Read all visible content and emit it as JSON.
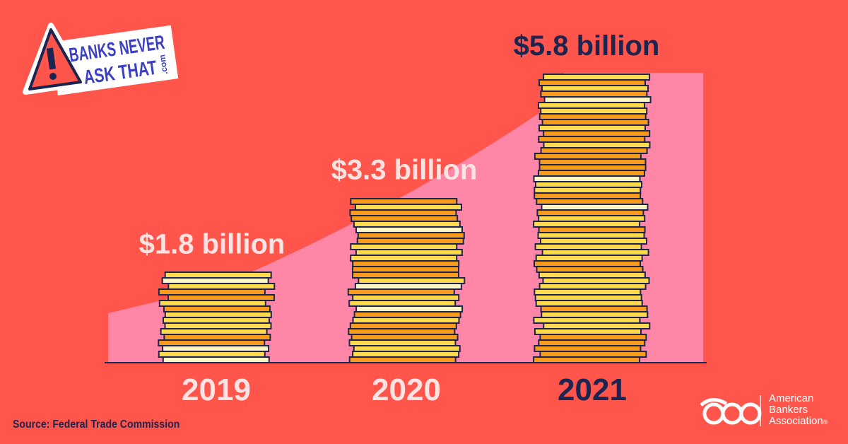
{
  "brand": {
    "line1": "BANKS NEVER",
    "line2": "ASK THAT",
    "suffix": ".com",
    "icon": "warning-triangle-icon"
  },
  "chart_data": {
    "type": "bar",
    "categories": [
      "2019",
      "2020",
      "2021"
    ],
    "values": [
      1.8,
      3.3,
      5.8
    ],
    "data_labels": [
      "$1.8 billion",
      "$3.3 billion",
      "$5.8 billion"
    ],
    "title": "",
    "xlabel": "",
    "ylabel": "",
    "ylim": [
      0,
      6
    ],
    "grid": false,
    "legend": "none",
    "bar_style": "stacked-coins",
    "colors": {
      "background": "#FF554B",
      "trend_area": "#FF86A6",
      "coin_yellow": "#FFD94E",
      "coin_orange": "#F89A1C",
      "coin_cream": "#FFF4C4",
      "outline": "#1B2550",
      "label_light": "#FFE3E3",
      "label_dark": "#1B2550"
    }
  },
  "source": "Source: Federal Trade Commission",
  "footer_logo": {
    "line1": "American",
    "line2": "Bankers",
    "line3": "Association",
    "mark": "®"
  }
}
